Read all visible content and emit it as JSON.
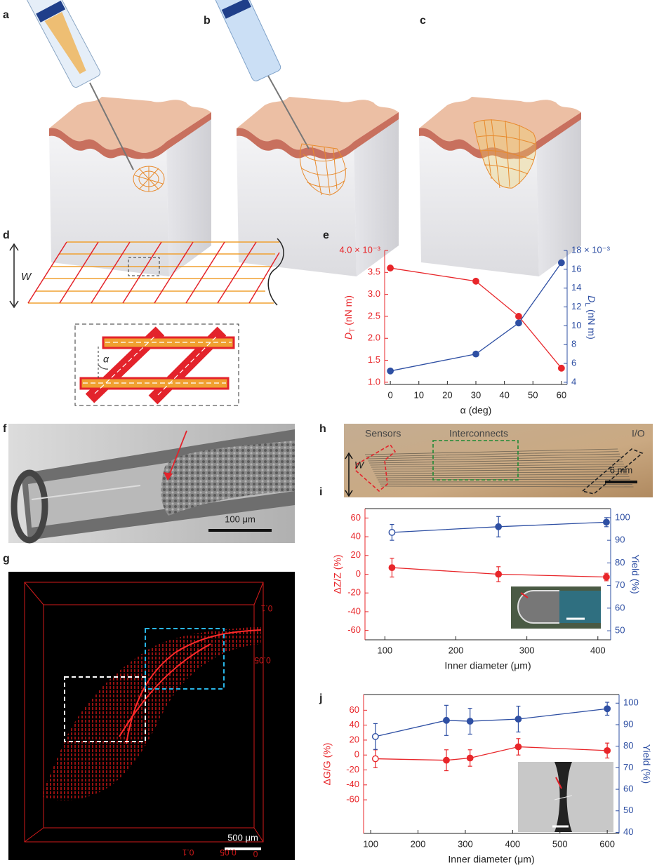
{
  "panel_labels": [
    "a",
    "b",
    "c",
    "d",
    "e",
    "f",
    "g",
    "h",
    "i",
    "j"
  ],
  "d": {
    "width_label": "W",
    "angle_label": "α"
  },
  "f": {
    "scale_bar": "100 μm"
  },
  "g": {
    "scale_bar": "500 μm",
    "axis_ticks": [
      "0.1",
      "0.05",
      "0.1",
      "0.05",
      "0"
    ]
  },
  "h": {
    "labels": [
      "Sensors",
      "Interconnects",
      "I/O"
    ],
    "width_label": "W",
    "scale_bar": "6 mm"
  },
  "chart_data": [
    {
      "type": "line",
      "xlabel": "α (deg)",
      "ylabel": {
        "symbol": "D",
        "sub": "T",
        "unit": "(nN m)"
      },
      "y2label": {
        "symbol": "D",
        "sub": "L",
        "unit": "(nN m)"
      },
      "x": [
        0,
        30,
        45,
        60
      ],
      "xlim": [
        -2,
        62
      ],
      "xticks": [
        0,
        10,
        20,
        30,
        40,
        50,
        60
      ],
      "ylim": [
        0.95,
        4.0
      ],
      "yticks": [
        {
          "value": 1,
          "label": "1.0"
        },
        {
          "value": 1.5,
          "label": "1.5"
        },
        {
          "value": 2,
          "label": "2.0"
        },
        {
          "value": 2.5,
          "label": "2.5"
        },
        {
          "value": 3,
          "label": "3.0"
        },
        {
          "value": 3.5,
          "label": "3.5"
        },
        {
          "value": 4,
          "label": "4.0 × 10⁻³"
        }
      ],
      "y2lim": [
        3.77,
        18
      ],
      "y2ticks": [
        4,
        6,
        8,
        10,
        12,
        14,
        16,
        {
          "value": 18,
          "label": "18 × 10⁻³"
        }
      ],
      "series": [
        {
          "color": "#e8262a",
          "values": [
            3.6,
            3.3,
            2.5,
            1.32
          ]
        },
        {
          "color": "#2e4fa3",
          "axis": "y2",
          "values": [
            5.2,
            7.0,
            10.3,
            16.7
          ]
        }
      ]
    },
    {
      "type": "line",
      "xlabel": "Inner diameter (μm)",
      "ylabel": "ΔZ/Z (%)",
      "y2label": "Yield (%)",
      "x": [
        110,
        260,
        412
      ],
      "xlim": [
        72,
        418
      ],
      "xticks": [
        100,
        200,
        300,
        400
      ],
      "ylim": [
        -70,
        70
      ],
      "yticks": [
        -60,
        -40,
        -20,
        0,
        20,
        40,
        60
      ],
      "y2lim": [
        46,
        104
      ],
      "y2ticks": [
        50,
        60,
        70,
        80,
        90,
        100
      ],
      "series": [
        {
          "color": "#e8262a",
          "values": [
            7,
            0,
            -3
          ],
          "errors": [
            10,
            8,
            4
          ]
        },
        {
          "color": "#2e4fa3",
          "axis": "y2",
          "values": [
            93.5,
            96,
            98
          ],
          "errors": [
            3.5,
            4.5,
            2
          ],
          "open_points": [
            0
          ]
        }
      ]
    },
    {
      "type": "line",
      "xlabel": "Inner diameter (μm)",
      "ylabel": "ΔG/G (%)",
      "y2label": "Yield (%)",
      "x": [
        110,
        260,
        310,
        412,
        600
      ],
      "xlim": [
        85,
        625
      ],
      "xticks": [
        100,
        200,
        300,
        400,
        500,
        600
      ],
      "ylim": [
        -105,
        81
      ],
      "yticks": [
        -60,
        -40,
        -20,
        0,
        20,
        40,
        60
      ],
      "y2lim": [
        39.5,
        104
      ],
      "y2ticks": [
        40,
        50,
        60,
        70,
        80,
        90,
        100
      ],
      "series": [
        {
          "color": "#e8262a",
          "values": [
            -5,
            -7,
            -4,
            11,
            6
          ],
          "errors": [
            12,
            14,
            11,
            11,
            10
          ],
          "open_points": [
            0
          ]
        },
        {
          "color": "#2e4fa3",
          "axis": "y2",
          "values": [
            84.5,
            92,
            91.6,
            92.6,
            97.4
          ],
          "errors": [
            6,
            7,
            6,
            6,
            3
          ],
          "open_points": [
            0
          ]
        }
      ]
    }
  ]
}
